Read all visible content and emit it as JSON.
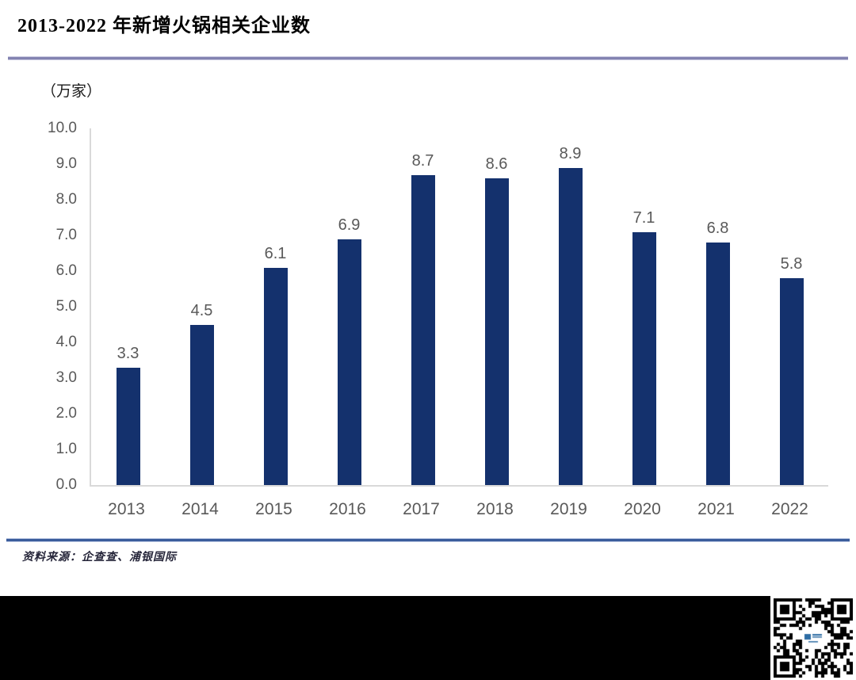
{
  "header": {
    "title": "2013-2022 年新增火锅相关企业数"
  },
  "chart_data": {
    "type": "bar",
    "title": "2013-2022 年新增火锅相关企业数",
    "unit_label": "（万家）",
    "categories": [
      "2013",
      "2014",
      "2015",
      "2016",
      "2017",
      "2018",
      "2019",
      "2020",
      "2021",
      "2022"
    ],
    "values": [
      3.3,
      4.5,
      6.1,
      6.9,
      8.7,
      8.6,
      8.9,
      7.1,
      6.8,
      5.8
    ],
    "value_labels": [
      "3.3",
      "4.5",
      "6.1",
      "6.9",
      "8.7",
      "8.6",
      "8.9",
      "7.1",
      "6.8",
      "5.8"
    ],
    "ylim": [
      0,
      10
    ],
    "ytick_labels": [
      "10.0",
      "9.0",
      "8.0",
      "7.0",
      "6.0",
      "5.0",
      "4.0",
      "3.0",
      "2.0",
      "1.0",
      "0.0"
    ],
    "grid": false,
    "legend_position": "none",
    "bar_color": "#14316D",
    "axis_text_color": "#595959"
  },
  "footer": {
    "source_text": "资料来源：企查查、浦银国际"
  },
  "colors": {
    "bar": "#14316D",
    "title_rule": "#8383B1",
    "source_rule": "#3A5C9C",
    "axis_line": "#D9D9D9",
    "axis_text": "#595959",
    "black_band": "#000000",
    "qr_logo": "#2E6DA4"
  }
}
